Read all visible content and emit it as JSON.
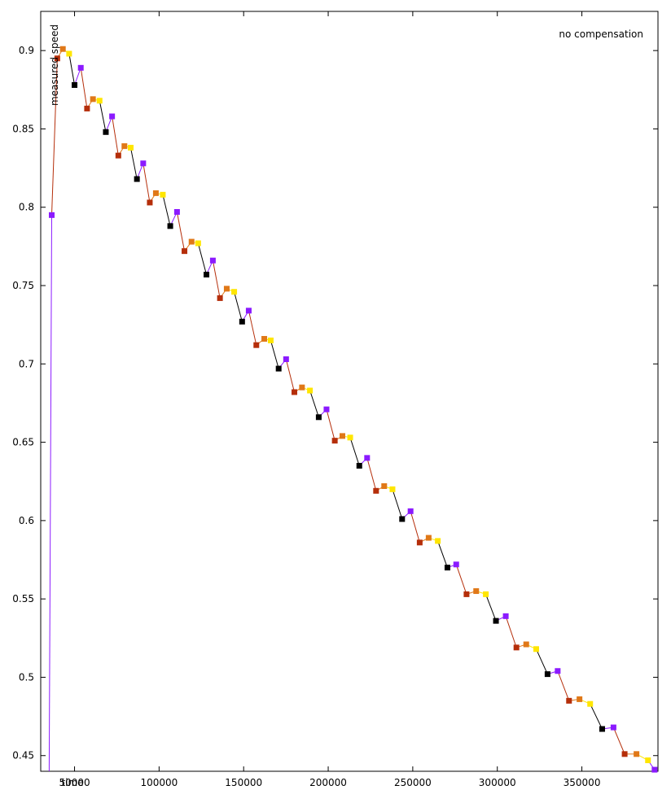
{
  "chart_data": {
    "type": "line",
    "title": "",
    "xlabel": "time",
    "ylabel": "measured speed",
    "legend_text": "no compensation",
    "legend_position": "top-right",
    "xlim": [
      30000,
      395000
    ],
    "ylim": [
      0.44,
      0.925
    ],
    "x_ticks": [
      50000,
      100000,
      150000,
      200000,
      250000,
      300000,
      350000
    ],
    "x_tick_labels": [
      "50000",
      "100000",
      "150000",
      "200000",
      "250000",
      "300000",
      "350000"
    ],
    "y_ticks": [
      0.45,
      0.5,
      0.55,
      0.6,
      0.65,
      0.7,
      0.75,
      0.8,
      0.85,
      0.9
    ],
    "y_tick_labels": [
      "0.45",
      "0.5",
      "0.55",
      "0.6",
      "0.65",
      "0.7",
      "0.75",
      "0.8",
      "0.85",
      "0.9"
    ],
    "grid": false,
    "colors": {
      "black": "#000000",
      "purple": "#8b1aff",
      "red": "#b52e0a",
      "orange": "#e07818",
      "yellow": "#ffe600",
      "axis": "#000000",
      "background": "#ffffff"
    },
    "series": [
      {
        "x": [
          35000,
          36500,
          39800,
          43100,
          46800,
          50000,
          53700,
          57400,
          60900,
          64800,
          68500,
          72200,
          75900,
          79500,
          83200,
          86900,
          90600,
          94500,
          98100,
          102200,
          106600,
          110600,
          115000,
          119200,
          123100,
          128000,
          131800,
          136000,
          140000,
          144400,
          149100,
          153000,
          157500,
          162200,
          166000,
          170700,
          175100,
          180000,
          184500,
          189200,
          194400,
          199000,
          203900,
          208400,
          213000,
          218400,
          223000,
          228300,
          233100,
          238000,
          243700,
          248700,
          254100,
          259400,
          264800,
          270500,
          275700,
          281800,
          287500,
          293200,
          299200,
          305000,
          311300,
          317100,
          323000,
          329700,
          335700,
          342400,
          348600,
          354900,
          362000,
          368700,
          375300,
          382300,
          389100,
          393000
        ],
        "y": [
          0.44,
          0.795,
          0.895,
          0.901,
          0.898,
          0.878,
          0.889,
          0.863,
          0.869,
          0.868,
          0.848,
          0.858,
          0.833,
          0.839,
          0.838,
          0.818,
          0.828,
          0.803,
          0.809,
          0.808,
          0.788,
          0.797,
          0.772,
          0.778,
          0.777,
          0.757,
          0.766,
          0.742,
          0.748,
          0.746,
          0.727,
          0.734,
          0.712,
          0.716,
          0.715,
          0.697,
          0.703,
          0.682,
          0.685,
          0.683,
          0.666,
          0.671,
          0.651,
          0.654,
          0.653,
          0.635,
          0.64,
          0.619,
          0.622,
          0.62,
          0.601,
          0.606,
          0.586,
          0.589,
          0.587,
          0.57,
          0.572,
          0.553,
          0.555,
          0.553,
          0.536,
          0.539,
          0.519,
          0.521,
          0.518,
          0.502,
          0.504,
          0.485,
          0.486,
          0.483,
          0.467,
          0.468,
          0.451,
          0.451,
          0.447,
          0.441
        ],
        "colors": [
          "purple",
          "purple",
          "red",
          "orange",
          "yellow",
          "black",
          "purple",
          "red",
          "orange",
          "yellow",
          "black",
          "purple",
          "red",
          "orange",
          "yellow",
          "black",
          "purple",
          "red",
          "orange",
          "yellow",
          "black",
          "purple",
          "red",
          "orange",
          "yellow",
          "black",
          "purple",
          "red",
          "orange",
          "yellow",
          "black",
          "purple",
          "red",
          "orange",
          "yellow",
          "black",
          "purple",
          "red",
          "orange",
          "yellow",
          "black",
          "purple",
          "red",
          "orange",
          "yellow",
          "black",
          "purple",
          "red",
          "orange",
          "yellow",
          "black",
          "purple",
          "red",
          "orange",
          "yellow",
          "black",
          "purple",
          "red",
          "orange",
          "yellow",
          "black",
          "purple",
          "red",
          "orange",
          "yellow",
          "black",
          "purple",
          "red",
          "orange",
          "yellow",
          "black",
          "purple",
          "red",
          "orange",
          "yellow",
          "purple"
        ]
      }
    ]
  }
}
